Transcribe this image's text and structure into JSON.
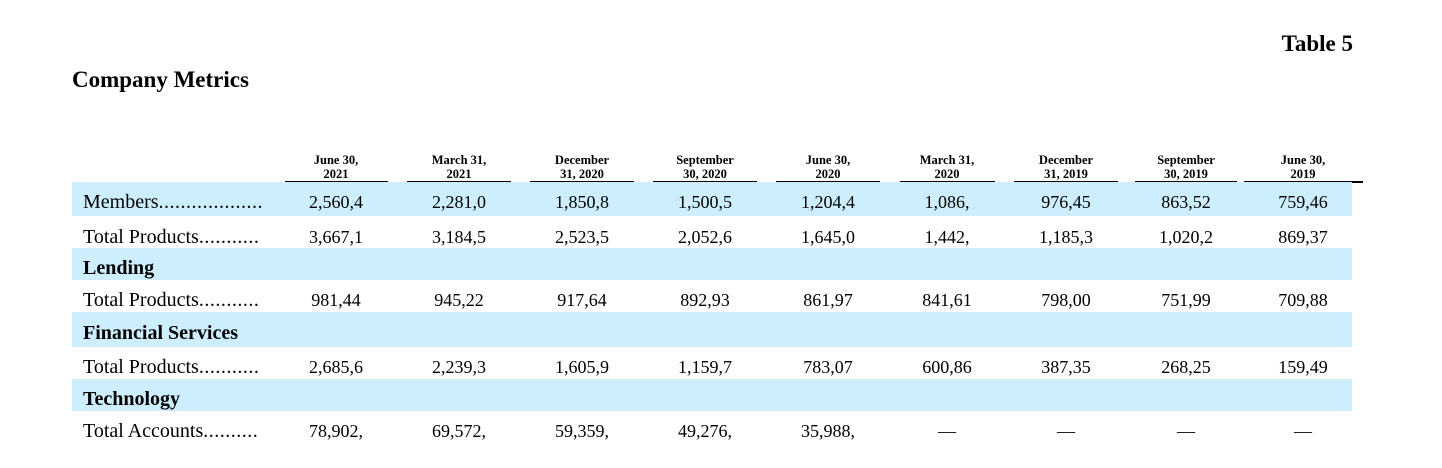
{
  "table_label": "Table 5",
  "title": "Company Metrics",
  "columns": [
    [
      "June 30,",
      "2021"
    ],
    [
      "March 31,",
      "2021"
    ],
    [
      "December",
      "31, 2020"
    ],
    [
      "September",
      "30, 2020"
    ],
    [
      "June 30,",
      "2020"
    ],
    [
      "March 31,",
      "2020"
    ],
    [
      "December",
      "31, 2019"
    ],
    [
      "September",
      "30, 2019"
    ],
    [
      "June 30,",
      "2019"
    ]
  ],
  "rows": [
    {
      "kind": "data",
      "shaded": true,
      "label": "Members",
      "dots": "...................",
      "values": [
        "2,560,4",
        "2,281,0",
        "1,850,8",
        "1,500,5",
        "1,204,4",
        "1,086,",
        "976,45",
        "863,52",
        "759,46"
      ]
    },
    {
      "kind": "data",
      "shaded": false,
      "label": "Total Products",
      "dots": "...........",
      "values": [
        "3,667,1",
        "3,184,5",
        "2,523,5",
        "2,052,6",
        "1,645,0",
        "1,442,",
        "1,185,3",
        "1,020,2",
        "869,37"
      ]
    },
    {
      "kind": "section",
      "shaded": true,
      "label": "Lending"
    },
    {
      "kind": "data",
      "shaded": false,
      "label": "Total Products",
      "dots": "...........",
      "values": [
        "981,44",
        "945,22",
        "917,64",
        "892,93",
        "861,97",
        "841,61",
        "798,00",
        "751,99",
        "709,88"
      ]
    },
    {
      "kind": "section",
      "shaded": true,
      "label": "Financial Services"
    },
    {
      "kind": "data",
      "shaded": false,
      "label": "Total Products",
      "dots": "...........",
      "values": [
        "2,685,6",
        "2,239,3",
        "1,605,9",
        "1,159,7",
        "783,07",
        "600,86",
        "387,35",
        "268,25",
        "159,49"
      ]
    },
    {
      "kind": "section",
      "shaded": true,
      "label": "Technology"
    },
    {
      "kind": "data",
      "shaded": false,
      "label": "Total Accounts",
      "dots": "..........",
      "values": [
        "78,902,",
        "69,572,",
        "59,359,",
        "49,276,",
        "35,988,",
        "—",
        "—",
        "—",
        "—"
      ]
    }
  ]
}
